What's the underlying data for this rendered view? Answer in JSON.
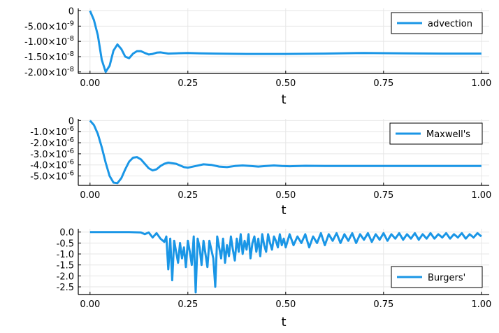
{
  "chart_data": [
    {
      "type": "line",
      "xlabel": "t",
      "xlim": [
        0,
        1
      ],
      "ylim": [
        -2e-08,
        0
      ],
      "x_ticks": [
        0,
        0.25,
        0.5,
        0.75,
        1.0
      ],
      "x_tick_labels": [
        "0.00",
        "0.25",
        "0.50",
        "0.75",
        "1.00"
      ],
      "y_ticks": [
        0,
        -5e-09,
        -1e-08,
        -1.5e-08,
        -2e-08
      ],
      "y_tick_labels": [
        {
          "mant": "0",
          "exp": ""
        },
        {
          "mant": "-5.00×10",
          "exp": "-9"
        },
        {
          "mant": "-1.00×10",
          "exp": "-8"
        },
        {
          "mant": "-1.50×10",
          "exp": "-8"
        },
        {
          "mant": "-2.00×10",
          "exp": "-8"
        }
      ],
      "legend": "top-right",
      "grid": true,
      "series": [
        {
          "name": "advection",
          "color": "#1a96e6",
          "x": [
            0,
            0.01,
            0.02,
            0.03,
            0.04,
            0.05,
            0.06,
            0.07,
            0.08,
            0.09,
            0.1,
            0.11,
            0.12,
            0.13,
            0.14,
            0.15,
            0.16,
            0.17,
            0.18,
            0.19,
            0.2,
            0.22,
            0.25,
            0.28,
            0.32,
            0.4,
            0.5,
            0.6,
            0.7,
            0.8,
            0.9,
            1.0
          ],
          "y": [
            0,
            -3e-09,
            -8e-09,
            -1.6e-08,
            -2e-08,
            -1.8e-08,
            -1.3e-08,
            -1.1e-08,
            -1.25e-08,
            -1.5e-08,
            -1.55e-08,
            -1.4e-08,
            -1.32e-08,
            -1.32e-08,
            -1.38e-08,
            -1.43e-08,
            -1.41e-08,
            -1.37e-08,
            -1.36e-08,
            -1.38e-08,
            -1.4e-08,
            -1.39e-08,
            -1.38e-08,
            -1.39e-08,
            -1.4e-08,
            -1.41e-08,
            -1.41e-08,
            -1.4e-08,
            -1.38e-08,
            -1.39e-08,
            -1.4e-08,
            -1.4e-08
          ]
        }
      ]
    },
    {
      "type": "line",
      "xlabel": "t",
      "xlim": [
        0,
        1
      ],
      "ylim": [
        -5e-06,
        0
      ],
      "x_ticks": [
        0,
        0.25,
        0.5,
        0.75,
        1.0
      ],
      "x_tick_labels": [
        "0.00",
        "0.25",
        "0.50",
        "0.75",
        "1.00"
      ],
      "y_ticks": [
        0,
        -1e-06,
        -2e-06,
        -3e-06,
        -4e-06,
        -5e-06
      ],
      "y_tick_labels": [
        {
          "mant": "0",
          "exp": ""
        },
        {
          "mant": "-1.0×10",
          "exp": "-6"
        },
        {
          "mant": "-2.0×10",
          "exp": "-6"
        },
        {
          "mant": "-3.0×10",
          "exp": "-6"
        },
        {
          "mant": "-4.0×10",
          "exp": "-6"
        },
        {
          "mant": "-5.0×10",
          "exp": "-6"
        }
      ],
      "legend": "top-right",
      "grid": true,
      "series": [
        {
          "name": "Maxwell's",
          "color": "#1a96e6",
          "x": [
            0,
            0.01,
            0.02,
            0.03,
            0.04,
            0.05,
            0.06,
            0.07,
            0.08,
            0.09,
            0.1,
            0.11,
            0.12,
            0.13,
            0.14,
            0.15,
            0.16,
            0.17,
            0.18,
            0.19,
            0.2,
            0.22,
            0.24,
            0.25,
            0.27,
            0.29,
            0.31,
            0.33,
            0.35,
            0.37,
            0.39,
            0.41,
            0.43,
            0.45,
            0.47,
            0.49,
            0.51,
            0.55,
            0.6,
            0.65,
            0.7,
            0.75,
            0.8,
            0.85,
            0.9,
            0.95,
            1.0
          ],
          "y": [
            0,
            -4e-07,
            -1.2e-06,
            -2.4e-06,
            -3.8e-06,
            -5e-06,
            -5.6e-06,
            -5.65e-06,
            -5.2e-06,
            -4.4e-06,
            -3.7e-06,
            -3.35e-06,
            -3.3e-06,
            -3.5e-06,
            -3.9e-06,
            -4.3e-06,
            -4.5e-06,
            -4.4e-06,
            -4.1e-06,
            -3.9e-06,
            -3.8e-06,
            -3.9e-06,
            -4.2e-06,
            -4.25e-06,
            -4.1e-06,
            -3.95e-06,
            -4e-06,
            -4.15e-06,
            -4.2e-06,
            -4.1e-06,
            -4.05e-06,
            -4.1e-06,
            -4.15e-06,
            -4.1e-06,
            -4.05e-06,
            -4.1e-06,
            -4.12e-06,
            -4.08e-06,
            -4.1e-06,
            -4.1e-06,
            -4.1e-06,
            -4.1e-06,
            -4.1e-06,
            -4.1e-06,
            -4.1e-06,
            -4.1e-06,
            -4.1e-06
          ]
        }
      ]
    },
    {
      "type": "line",
      "xlabel": "t",
      "xlim": [
        0,
        1
      ],
      "ylim": [
        -2.5,
        0
      ],
      "x_ticks": [
        0,
        0.25,
        0.5,
        0.75,
        1.0
      ],
      "x_tick_labels": [
        "0.00",
        "0.25",
        "0.50",
        "0.75",
        "1.00"
      ],
      "y_ticks": [
        0,
        -0.5,
        -1.0,
        -1.5,
        -2.0,
        -2.5
      ],
      "y_tick_labels": [
        {
          "mant": "0.0",
          "exp": ""
        },
        {
          "mant": "-0.5",
          "exp": ""
        },
        {
          "mant": "-1.0",
          "exp": ""
        },
        {
          "mant": "-1.5",
          "exp": ""
        },
        {
          "mant": "-2.0",
          "exp": ""
        },
        {
          "mant": "-2.5",
          "exp": ""
        }
      ],
      "legend": "bottom-right",
      "grid": true,
      "series": [
        {
          "name": "Burgers'",
          "color": "#1a96e6",
          "x": [
            0,
            0.05,
            0.1,
            0.13,
            0.14,
            0.15,
            0.16,
            0.17,
            0.18,
            0.19,
            0.195,
            0.2,
            0.205,
            0.21,
            0.215,
            0.22,
            0.225,
            0.23,
            0.235,
            0.24,
            0.245,
            0.25,
            0.255,
            0.26,
            0.265,
            0.27,
            0.275,
            0.28,
            0.285,
            0.29,
            0.295,
            0.3,
            0.305,
            0.31,
            0.315,
            0.32,
            0.325,
            0.33,
            0.335,
            0.34,
            0.345,
            0.35,
            0.355,
            0.36,
            0.365,
            0.37,
            0.375,
            0.38,
            0.385,
            0.39,
            0.395,
            0.4,
            0.405,
            0.41,
            0.415,
            0.42,
            0.425,
            0.43,
            0.435,
            0.44,
            0.445,
            0.45,
            0.455,
            0.46,
            0.465,
            0.47,
            0.475,
            0.48,
            0.485,
            0.49,
            0.495,
            0.5,
            0.51,
            0.52,
            0.53,
            0.54,
            0.55,
            0.56,
            0.57,
            0.58,
            0.59,
            0.6,
            0.61,
            0.62,
            0.63,
            0.64,
            0.65,
            0.66,
            0.67,
            0.68,
            0.69,
            0.7,
            0.71,
            0.72,
            0.73,
            0.74,
            0.75,
            0.76,
            0.77,
            0.78,
            0.79,
            0.8,
            0.81,
            0.82,
            0.83,
            0.84,
            0.85,
            0.86,
            0.87,
            0.88,
            0.89,
            0.9,
            0.91,
            0.92,
            0.93,
            0.94,
            0.95,
            0.96,
            0.97,
            0.98,
            0.99,
            1.0
          ],
          "y": [
            0,
            0,
            0,
            -0.02,
            -0.1,
            -0.02,
            -0.25,
            -0.05,
            -0.3,
            -0.45,
            -0.2,
            -1.7,
            -0.3,
            -2.2,
            -0.4,
            -0.9,
            -1.4,
            -0.5,
            -1.2,
            -0.7,
            -1.6,
            -0.4,
            -0.9,
            -1.5,
            -0.2,
            -2.75,
            -0.3,
            -0.7,
            -1.5,
            -0.4,
            -1.0,
            -1.6,
            -0.4,
            -0.8,
            -1.2,
            -2.5,
            -0.2,
            -0.7,
            -1.2,
            -0.3,
            -1.4,
            -0.6,
            -1.1,
            -0.2,
            -0.8,
            -1.3,
            -0.3,
            -0.9,
            -0.1,
            -1.0,
            -0.4,
            -0.8,
            -0.1,
            -1.2,
            -0.5,
            -0.2,
            -0.9,
            -0.3,
            -1.1,
            -0.1,
            -0.6,
            -0.9,
            -0.1,
            -0.5,
            -0.8,
            -0.2,
            -0.4,
            -0.7,
            -0.1,
            -0.6,
            -0.3,
            -0.7,
            -0.1,
            -0.6,
            -0.2,
            -0.5,
            -0.1,
            -0.7,
            -0.2,
            -0.5,
            -0.05,
            -0.6,
            -0.1,
            -0.4,
            -0.05,
            -0.5,
            -0.1,
            -0.4,
            -0.05,
            -0.5,
            -0.1,
            -0.35,
            -0.05,
            -0.45,
            -0.1,
            -0.35,
            -0.05,
            -0.4,
            -0.1,
            -0.3,
            -0.05,
            -0.35,
            -0.1,
            -0.3,
            -0.05,
            -0.35,
            -0.1,
            -0.3,
            -0.05,
            -0.3,
            -0.1,
            -0.25,
            -0.05,
            -0.3,
            -0.1,
            -0.25,
            -0.05,
            -0.3,
            -0.1,
            -0.25,
            -0.05,
            -0.2
          ]
        }
      ]
    }
  ]
}
